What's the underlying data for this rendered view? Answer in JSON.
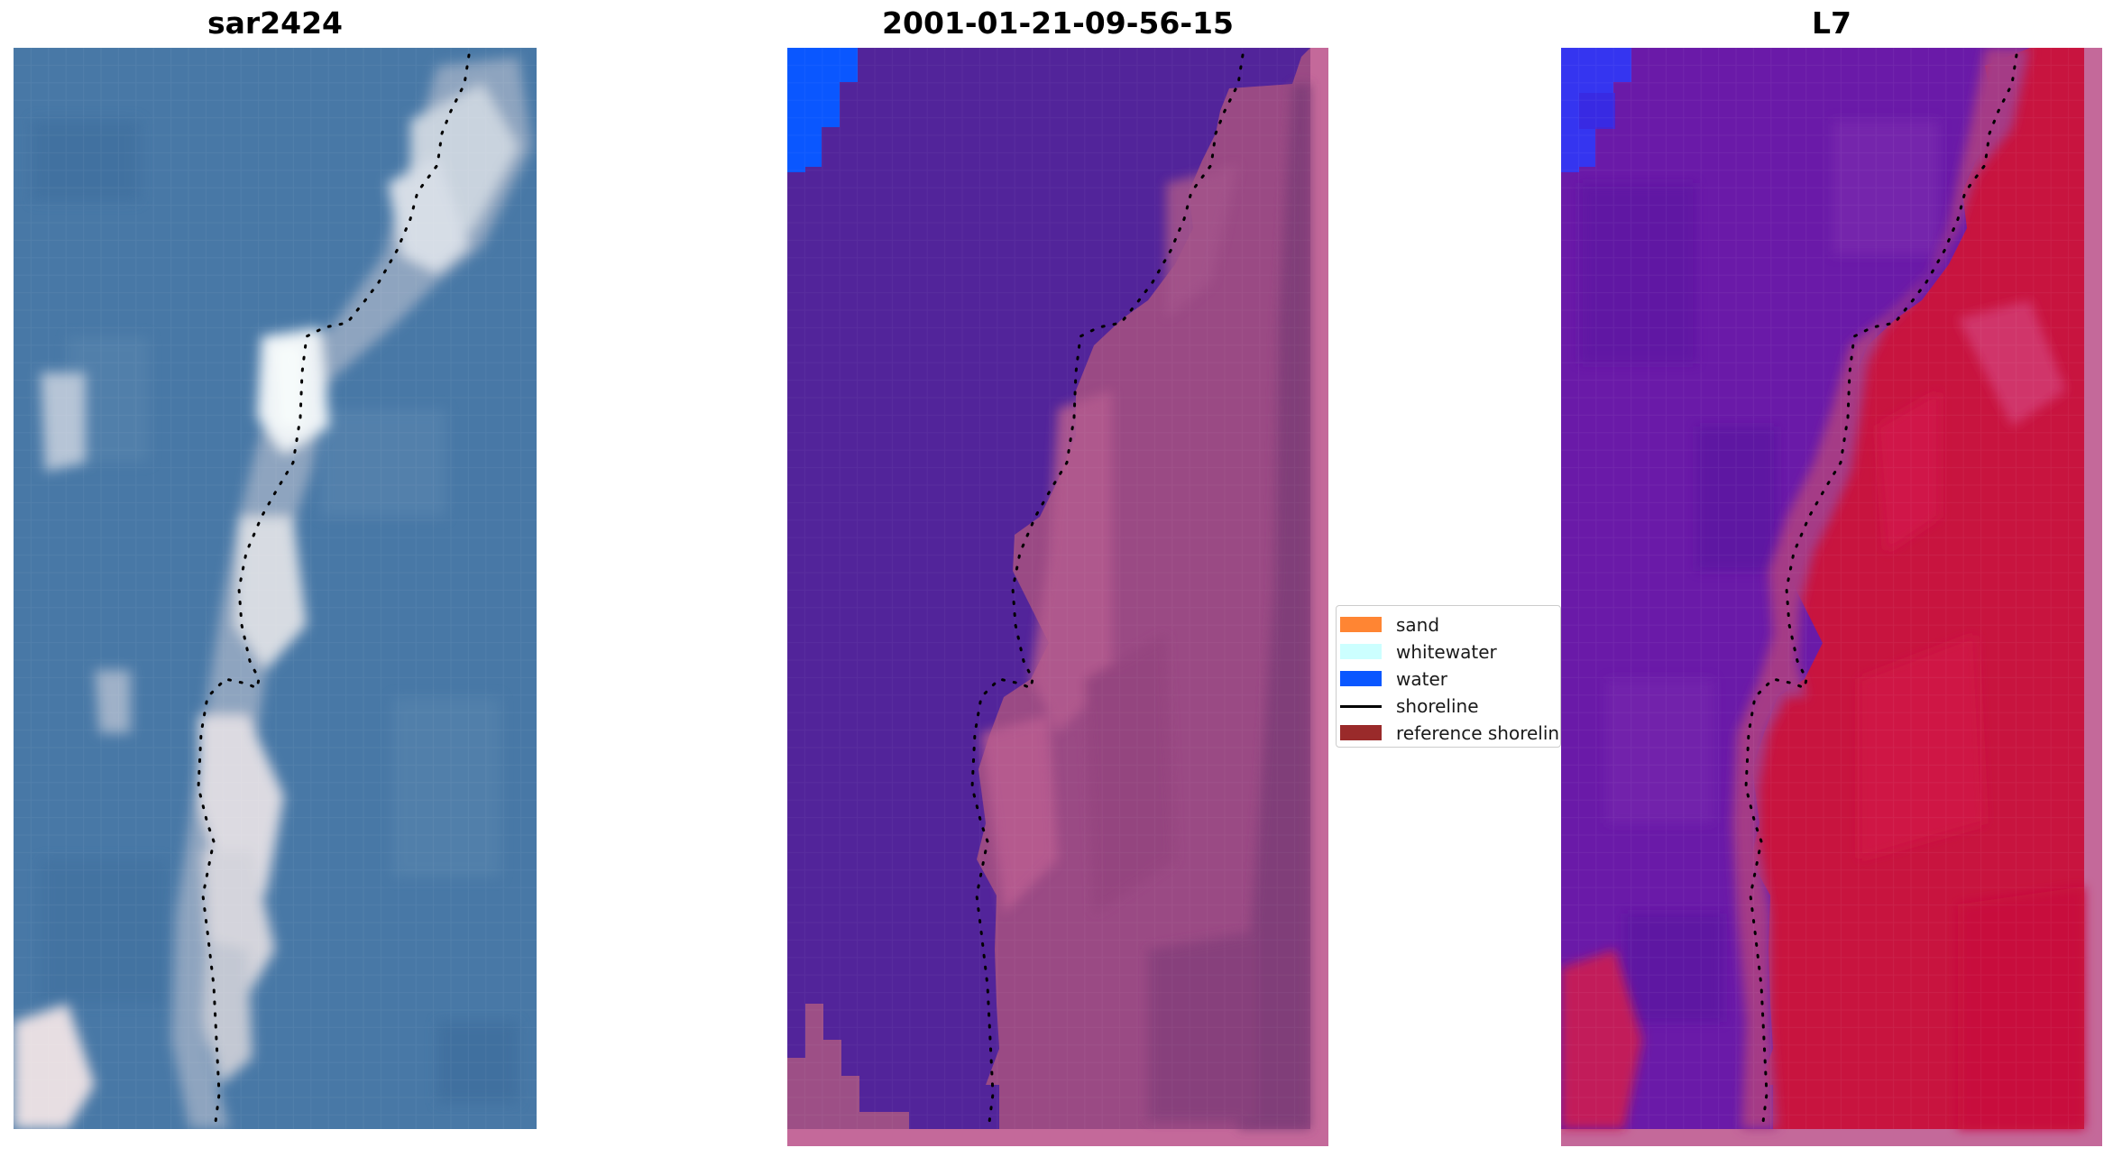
{
  "panels": {
    "left": {
      "title": "sar2424"
    },
    "middle": {
      "title": "2001-01-21-09-56-15"
    },
    "right": {
      "title": "L7"
    }
  },
  "legend": {
    "items": [
      {
        "label": "sand",
        "color": "#ff8533",
        "kind": "patch"
      },
      {
        "label": "whitewater",
        "color": "#ccffff",
        "kind": "patch"
      },
      {
        "label": "water",
        "color": "#0a57ff",
        "kind": "patch"
      },
      {
        "label": "shoreline",
        "color": "#000000",
        "kind": "line"
      },
      {
        "label": "reference shoreline",
        "color": "#9a2a2a",
        "kind": "patch"
      }
    ]
  },
  "colors": {
    "sea_rgb": "#4a7aa8",
    "water_class": "#0a57ff",
    "class_background": "#52249a",
    "land_class": "#b0528a",
    "index_low": "#6a1aa8",
    "index_high": "#c8143f",
    "frame_border": "#c4699a"
  }
}
